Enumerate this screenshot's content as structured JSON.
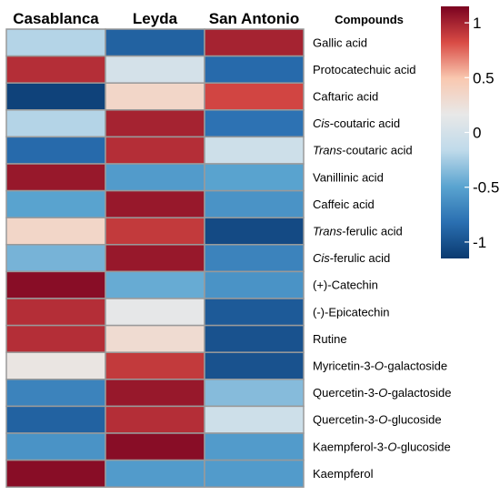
{
  "chart_data": {
    "type": "heatmap",
    "title": "",
    "columns": [
      "Casablanca",
      "Leyda",
      "San Antonio"
    ],
    "row_header": "Compounds",
    "rows": [
      [
        {
          "t": "Gallic acid",
          "i": false
        }
      ],
      [
        {
          "t": "Protocatechuic acid",
          "i": false
        }
      ],
      [
        {
          "t": "Caftaric acid",
          "i": false
        }
      ],
      [
        {
          "t": "Cis",
          "i": true
        },
        {
          "t": "-coutaric acid",
          "i": false
        }
      ],
      [
        {
          "t": "Trans",
          "i": true
        },
        {
          "t": "-coutaric acid",
          "i": false
        }
      ],
      [
        {
          "t": "Vanillinic acid",
          "i": false
        }
      ],
      [
        {
          "t": "Caffeic acid",
          "i": false
        }
      ],
      [
        {
          "t": "Trans",
          "i": true
        },
        {
          "t": "-ferulic acid",
          "i": false
        }
      ],
      [
        {
          "t": "Cis",
          "i": true
        },
        {
          "t": "-ferulic acid",
          "i": false
        }
      ],
      [
        {
          "t": "(+)-Catechin",
          "i": false
        }
      ],
      [
        {
          "t": "(-)-Epicatechin",
          "i": false
        }
      ],
      [
        {
          "t": "Rutine",
          "i": false
        }
      ],
      [
        {
          "t": "Myricetin-3-",
          "i": false
        },
        {
          "t": "O",
          "i": true
        },
        {
          "t": "-galactoside",
          "i": false
        }
      ],
      [
        {
          "t": "Quercetin-3-",
          "i": false
        },
        {
          "t": "O",
          "i": true
        },
        {
          "t": "-galactoside",
          "i": false
        }
      ],
      [
        {
          "t": "Quercetin-3-",
          "i": false
        },
        {
          "t": "O",
          "i": true
        },
        {
          "t": "-glucoside",
          "i": false
        }
      ],
      [
        {
          "t": "Kaempferol-3-",
          "i": false
        },
        {
          "t": "O",
          "i": true
        },
        {
          "t": "-glucoside",
          "i": false
        }
      ],
      [
        {
          "t": "Kaempferol",
          "i": false
        }
      ]
    ],
    "values": [
      [
        -0.2,
        -0.9,
        1.0
      ],
      [
        0.95,
        0.0,
        -0.85
      ],
      [
        -1.1,
        0.35,
        0.85
      ],
      [
        -0.2,
        1.0,
        -0.8
      ],
      [
        -0.85,
        0.95,
        -0.05
      ],
      [
        1.05,
        -0.55,
        -0.5
      ],
      [
        -0.5,
        1.05,
        -0.6
      ],
      [
        0.35,
        0.9,
        -1.05
      ],
      [
        -0.4,
        1.05,
        -0.7
      ],
      [
        1.1,
        -0.45,
        -0.6
      ],
      [
        0.95,
        0.15,
        -0.95
      ],
      [
        0.95,
        0.3,
        -1.0
      ],
      [
        0.2,
        0.9,
        -1.0
      ],
      [
        -0.7,
        1.05,
        -0.35
      ],
      [
        -0.9,
        0.95,
        -0.05
      ],
      [
        -0.6,
        1.1,
        -0.55
      ],
      [
        1.1,
        -0.55,
        -0.55
      ]
    ],
    "color_scale": {
      "min": -1.15,
      "max": 1.15,
      "stops": [
        "#0a3a70",
        "#2a6fb1",
        "#5aa4d0",
        "#bfdaea",
        "#e8e8e8",
        "#f9c8b0",
        "#d94b45",
        "#7a0220"
      ]
    },
    "colorbar_ticks": [
      {
        "value": 1,
        "label": "1"
      },
      {
        "value": 0.5,
        "label": "0.5"
      },
      {
        "value": 0,
        "label": "0"
      },
      {
        "value": -0.5,
        "label": "-0.5"
      },
      {
        "value": -1,
        "label": "-1"
      }
    ],
    "grid": true,
    "cell_border_color": "#9a9a9a",
    "legend": "right"
  }
}
